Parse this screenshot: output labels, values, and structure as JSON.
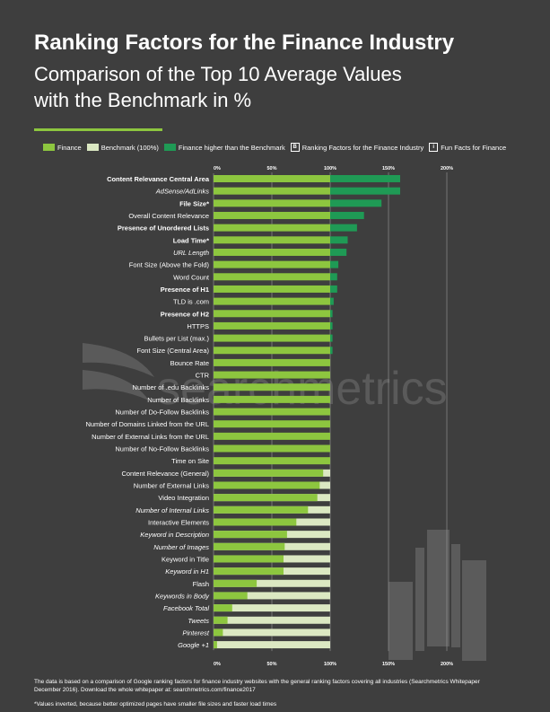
{
  "header": {
    "title": "Ranking Factors for the Finance Industry",
    "subtitle_line1": "Comparison of the Top 10 Average Values",
    "subtitle_line2": "with the Benchmark in %"
  },
  "legend": {
    "finance": "Finance",
    "benchmark": "Benchmark (100%)",
    "higher": "Finance higher than the Benchmark",
    "ranking_box": "B",
    "ranking": "Ranking Factors for the Finance Industry",
    "fun_box": "i",
    "fun": "Fun Facts for Finance"
  },
  "watermark": "searchmetrics",
  "footer": {
    "note_line1": "The data is based on a comparison of Google ranking factors for finance industry websites with the general ranking factors covering all industries (Searchmetrics Whitepaper",
    "note_line2": "December 2016). Download the whole whitepaper at: searchmetrics.com/finance2017",
    "asterisk": "*Values inverted, because better optimized pages have smaller file sizes and faster load times"
  },
  "colors": {
    "background": "#3e3e3e",
    "finance": "#8dc63f",
    "benchmark": "#dbe8c2",
    "higher": "#1f9a55",
    "watermark": "#5a5a5a"
  },
  "chart_data": {
    "type": "bar",
    "orientation": "horizontal",
    "xlim": [
      0,
      200
    ],
    "ticks": [
      "0%",
      "50%",
      "100%",
      "150%",
      "200%"
    ],
    "tick_values": [
      0,
      50,
      100,
      150,
      200
    ],
    "benchmark": 100,
    "categories": [
      {
        "label": "Content Relevance Central Area",
        "value": 160,
        "style": "bold"
      },
      {
        "label": "AdSense/AdLinks",
        "value": 160,
        "style": "italic"
      },
      {
        "label": "File Size*",
        "value": 144,
        "style": "bold"
      },
      {
        "label": "Overall Content Relevance",
        "value": 129,
        "style": "normal"
      },
      {
        "label": "Presence of Unordered Lists",
        "value": 123,
        "style": "bold"
      },
      {
        "label": "Load Time*",
        "value": 115,
        "style": "bold"
      },
      {
        "label": "URL Length",
        "value": 114,
        "style": "italic"
      },
      {
        "label": "Font Size (Above the Fold)",
        "value": 107,
        "style": "normal"
      },
      {
        "label": "Word Count",
        "value": 106,
        "style": "normal"
      },
      {
        "label": "Presence of H1",
        "value": 106,
        "style": "bold"
      },
      {
        "label": "TLD is .com",
        "value": 103,
        "style": "normal"
      },
      {
        "label": "Presence of H2",
        "value": 102,
        "style": "bold"
      },
      {
        "label": "HTTPS",
        "value": 102,
        "style": "normal"
      },
      {
        "label": "Bullets per List (max.)",
        "value": 102,
        "style": "normal"
      },
      {
        "label": "Font Size (Central Area)",
        "value": 102,
        "style": "normal"
      },
      {
        "label": "Bounce Rate",
        "value": 100,
        "style": "normal"
      },
      {
        "label": "CTR",
        "value": 100,
        "style": "normal"
      },
      {
        "label": "Number of .edu Backlinks",
        "value": 100,
        "style": "normal"
      },
      {
        "label": "Number of Backlinks",
        "value": 100,
        "style": "normal"
      },
      {
        "label": "Number of Do-Follow Backlinks",
        "value": 100,
        "style": "normal"
      },
      {
        "label": "Number of Domains Linked from the URL",
        "value": 100,
        "style": "normal"
      },
      {
        "label": "Number of External Links from the URL",
        "value": 100,
        "style": "normal"
      },
      {
        "label": "Number of No-Follow Backlinks",
        "value": 100,
        "style": "normal"
      },
      {
        "label": "Time on Site",
        "value": 100,
        "style": "normal"
      },
      {
        "label": "Content Relevance (General)",
        "value": 94,
        "style": "normal"
      },
      {
        "label": "Number of External Links",
        "value": 91,
        "style": "normal"
      },
      {
        "label": "Video Integration",
        "value": 89,
        "style": "normal"
      },
      {
        "label": "Number of Internal Links",
        "value": 81,
        "style": "italic"
      },
      {
        "label": "Interactive Elements",
        "value": 71,
        "style": "normal"
      },
      {
        "label": "Keyword in Description",
        "value": 63,
        "style": "italic"
      },
      {
        "label": "Number of Images",
        "value": 61,
        "style": "italic"
      },
      {
        "label": "Keyword in Title",
        "value": 60,
        "style": "normal"
      },
      {
        "label": "Keyword in H1",
        "value": 60,
        "style": "italic"
      },
      {
        "label": "Flash",
        "value": 37,
        "style": "normal"
      },
      {
        "label": "Keywords in Body",
        "value": 29,
        "style": "italic"
      },
      {
        "label": "Facebook Total",
        "value": 16,
        "style": "italic"
      },
      {
        "label": "Tweets",
        "value": 12,
        "style": "italic"
      },
      {
        "label": "Pinterest",
        "value": 8,
        "style": "italic"
      },
      {
        "label": "Google +1",
        "value": 3,
        "style": "italic"
      }
    ]
  }
}
